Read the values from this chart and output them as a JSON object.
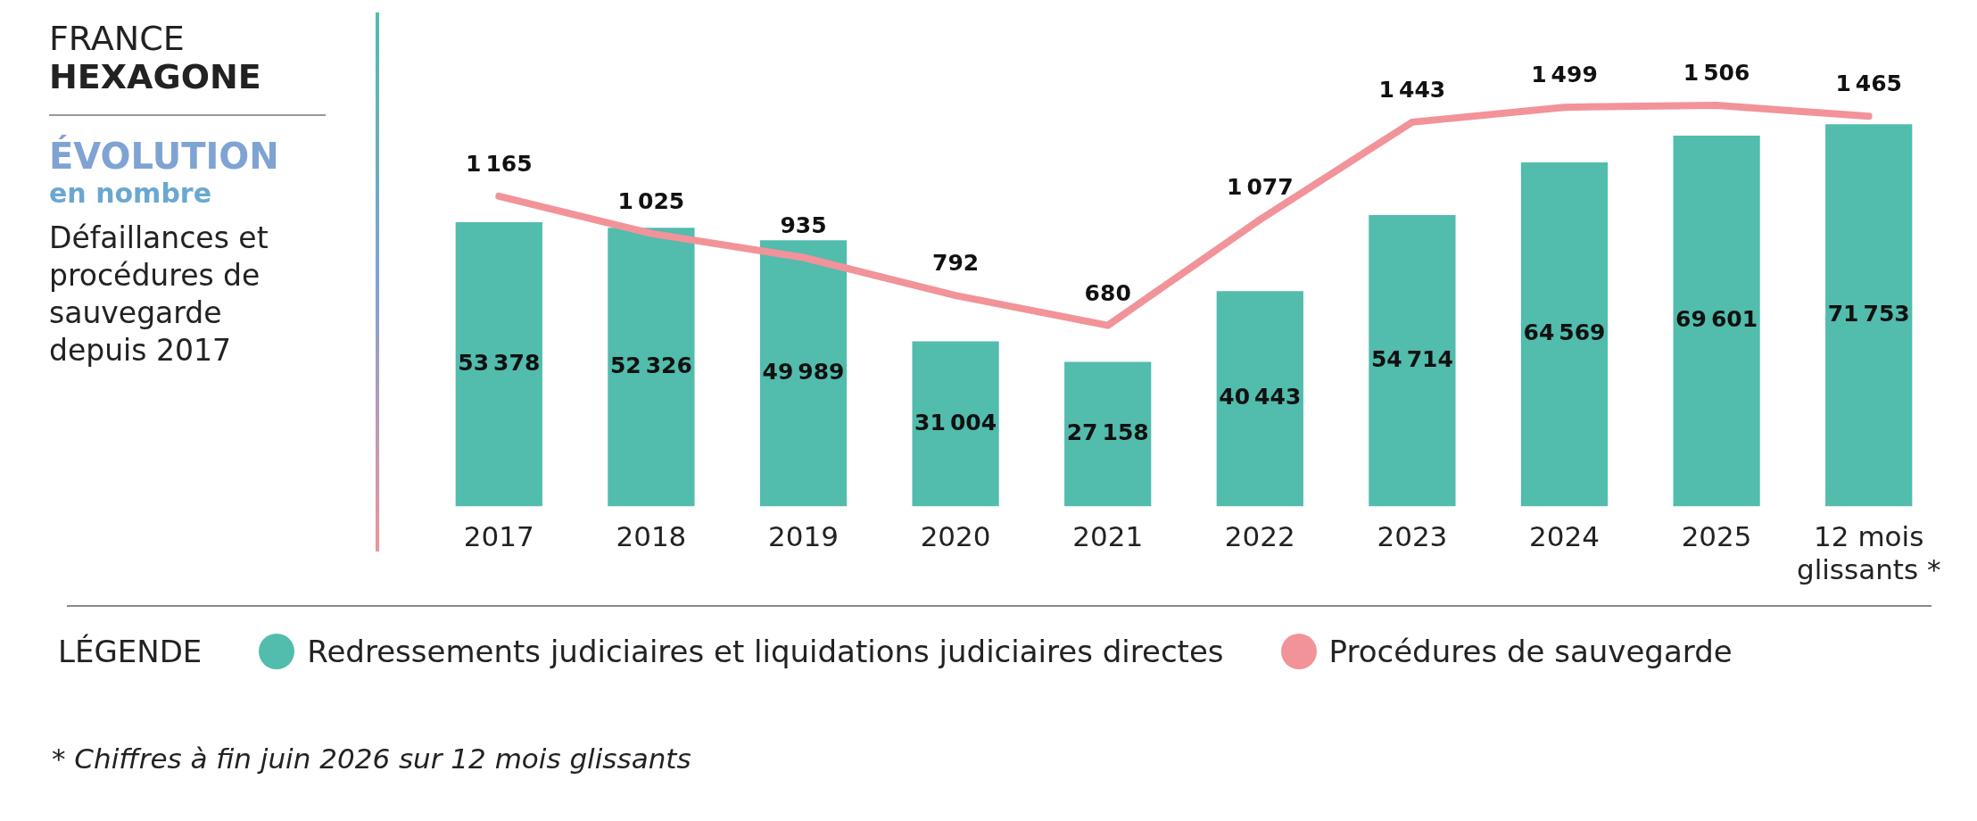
{
  "chart_data": {
    "type": "bar",
    "title": "FRANCE",
    "subtitle": "HEXAGONE",
    "annotations": [
      "ÉVOLUTION",
      "en nombre",
      "Défaillances et procédures de sauvegarde depuis 2017",
      "* Chiffres à fin juin 2026 sur 12 mois glissants"
    ],
    "legend_title": "LÉGENDE",
    "categories": [
      "2017",
      "2018",
      "2019",
      "2020",
      "2021",
      "2022",
      "2023",
      "2024",
      "2025",
      "12 mois glissants *"
    ],
    "series": [
      {
        "name": "Redressements judiciaires et liquidations judiciaires directes",
        "color": "#52bcad",
        "values": [
          53378,
          52326,
          49989,
          31004,
          27158,
          40443,
          54714,
          64569,
          69601,
          71753
        ]
      },
      {
        "name": "Procédures de sauvegarde",
        "type": "line",
        "axis": "y2",
        "color": "#f2939a",
        "marker": "none",
        "values": [
          1165,
          1025,
          935,
          792,
          680,
          1077,
          1443,
          1499,
          1506,
          1465
        ]
      }
    ],
    "tick_labels": "x",
    "grid": false,
    "legend": "bottom",
    "data_labels": true
  }
}
